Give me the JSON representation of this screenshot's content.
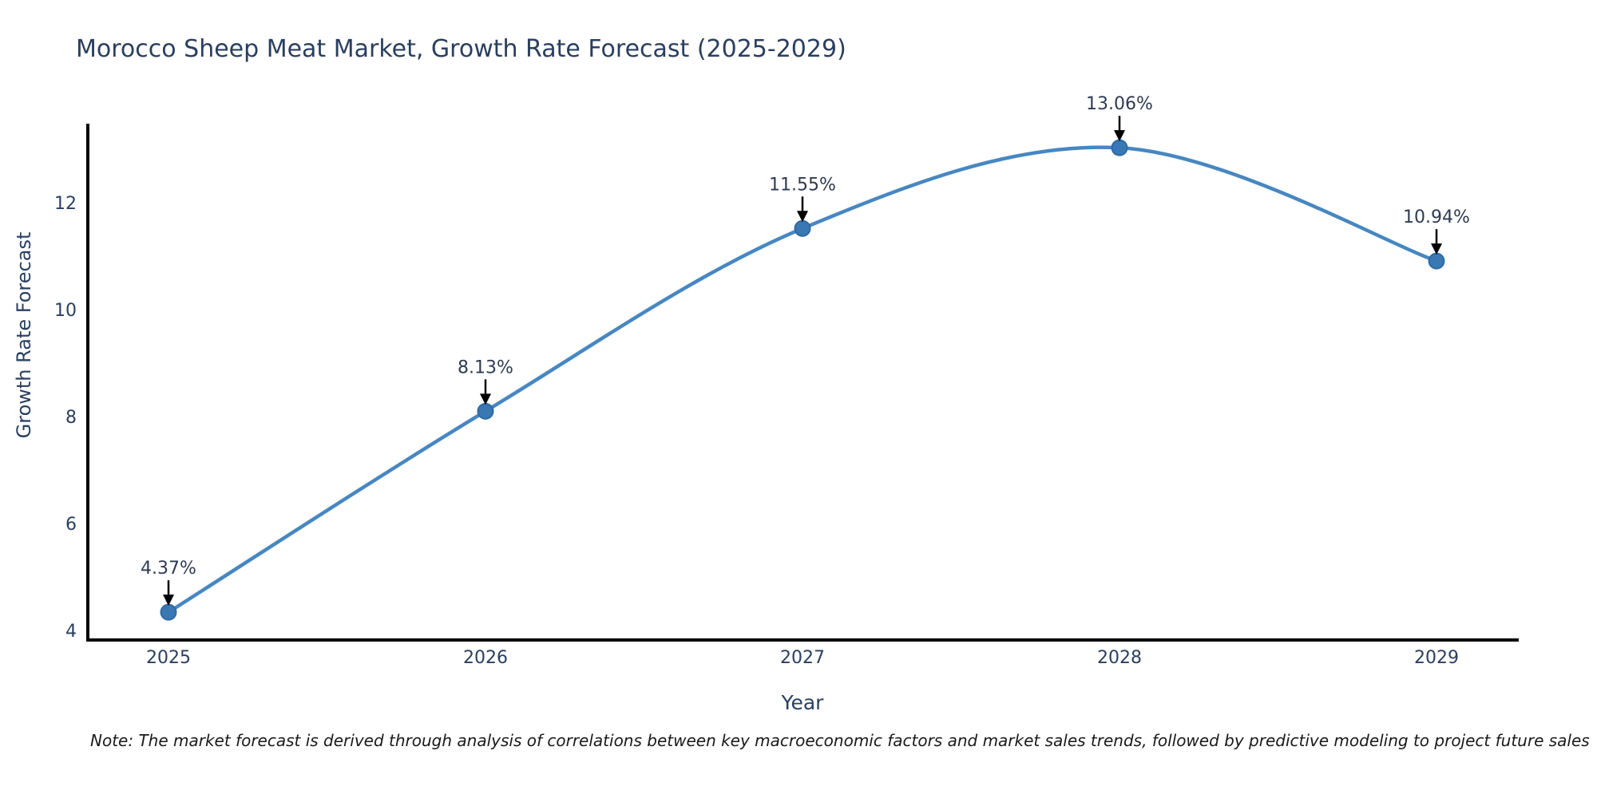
{
  "title": "Morocco Sheep Meat Market, Growth Rate Forecast (2025-2029)",
  "note": "Note: The market forecast is derived through analysis of correlations between key macroeconomic factors and market sales trends, followed by predictive modeling to project future sales",
  "colors": {
    "background": "#ffffff",
    "text": "#2a3f5f",
    "annotation_text": "#2f3b52",
    "line": "#4787c1",
    "marker_fill": "#3a78b3",
    "marker_stroke": "#2f6aa3",
    "axis_line": "#000000",
    "arrow": "#000000"
  },
  "chart_data": {
    "type": "line",
    "title": "Morocco Sheep Meat Market, Growth Rate Forecast (2025-2029)",
    "xlabel": "Year",
    "ylabel": "Growth Rate Forecast",
    "x": [
      2025,
      2026,
      2027,
      2028,
      2029
    ],
    "values": [
      4.37,
      8.13,
      11.55,
      13.06,
      10.94
    ],
    "point_labels": [
      "4.37%",
      "8.13%",
      "11.55%",
      "13.06%",
      "10.94%"
    ],
    "yticks": [
      4,
      6,
      8,
      10,
      12
    ],
    "ylim": [
      3.88,
      13.51
    ],
    "line_shape": "spline",
    "grid": false,
    "legend": "none"
  }
}
